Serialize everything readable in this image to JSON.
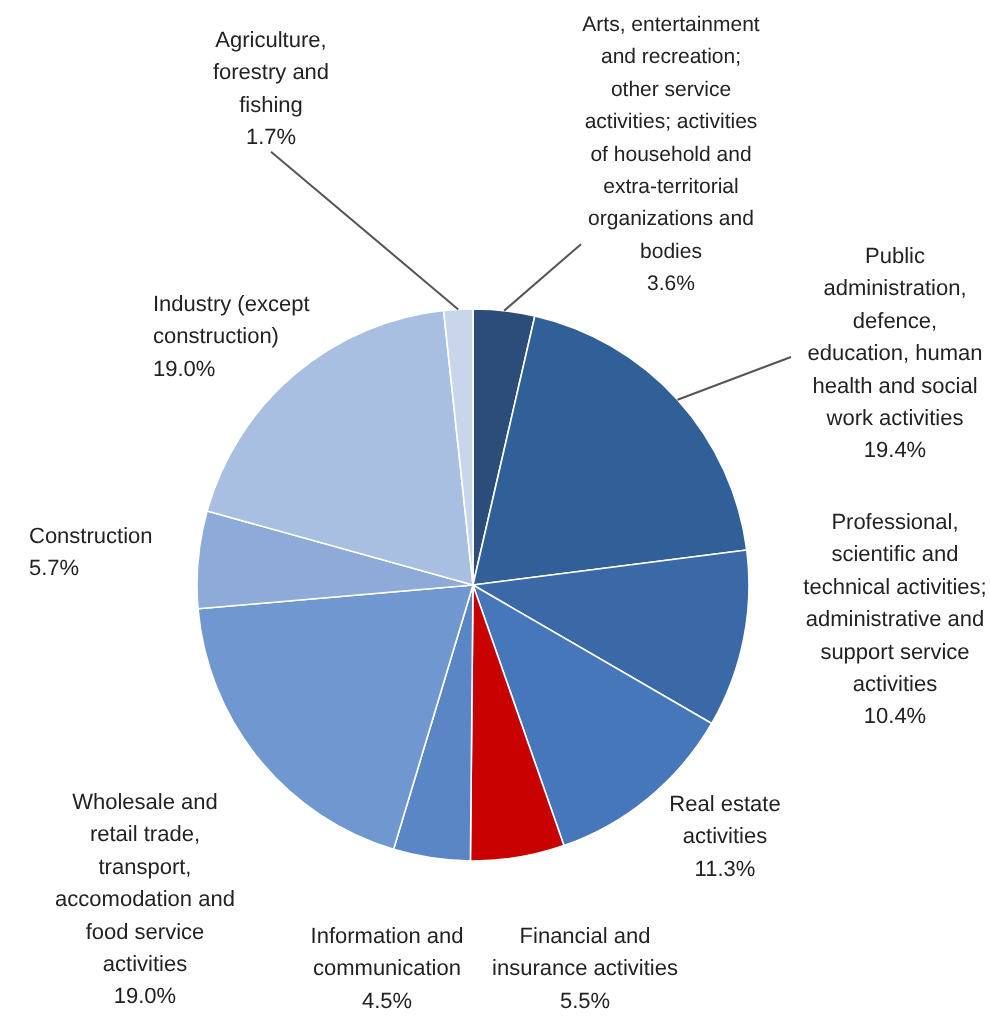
{
  "chart_data": {
    "type": "pie",
    "categories": [
      "Arts, entertainment\nand recreation;\nother service\nactivities; activities\nof household and\nextra-territorial\norganizations and\nbodies",
      "Public\nadministration,\ndefence,\neducation, human\nhealth and social\nwork activities",
      "Professional,\nscientific and\ntechnical activities;\nadministrative and\nsupport service\nactivities",
      "Real estate\nactivities",
      "Financial and\ninsurance activities",
      "Information and\ncommunication",
      "Wholesale and\nretail trade,\ntransport,\naccomodation and\nfood service\nactivities",
      "Construction",
      "Industry (except\nconstruction)",
      "Agriculture,\nforestry and\nfishing"
    ],
    "values": [
      3.6,
      19.4,
      10.4,
      11.3,
      5.5,
      4.5,
      19.0,
      5.7,
      19.0,
      1.7
    ],
    "value_labels": [
      "3.6%",
      "19.4%",
      "10.4%",
      "11.3%",
      "5.5%",
      "4.5%",
      "19.0%",
      "5.7%",
      "19.0%",
      "1.7%"
    ],
    "colors": [
      "#2c4d7a",
      "#315f98",
      "#3b68a6",
      "#4677ba",
      "#c80000",
      "#5a86c6",
      "#7097d0",
      "#8daad8",
      "#a9bfe2",
      "#c9d5eb"
    ]
  }
}
